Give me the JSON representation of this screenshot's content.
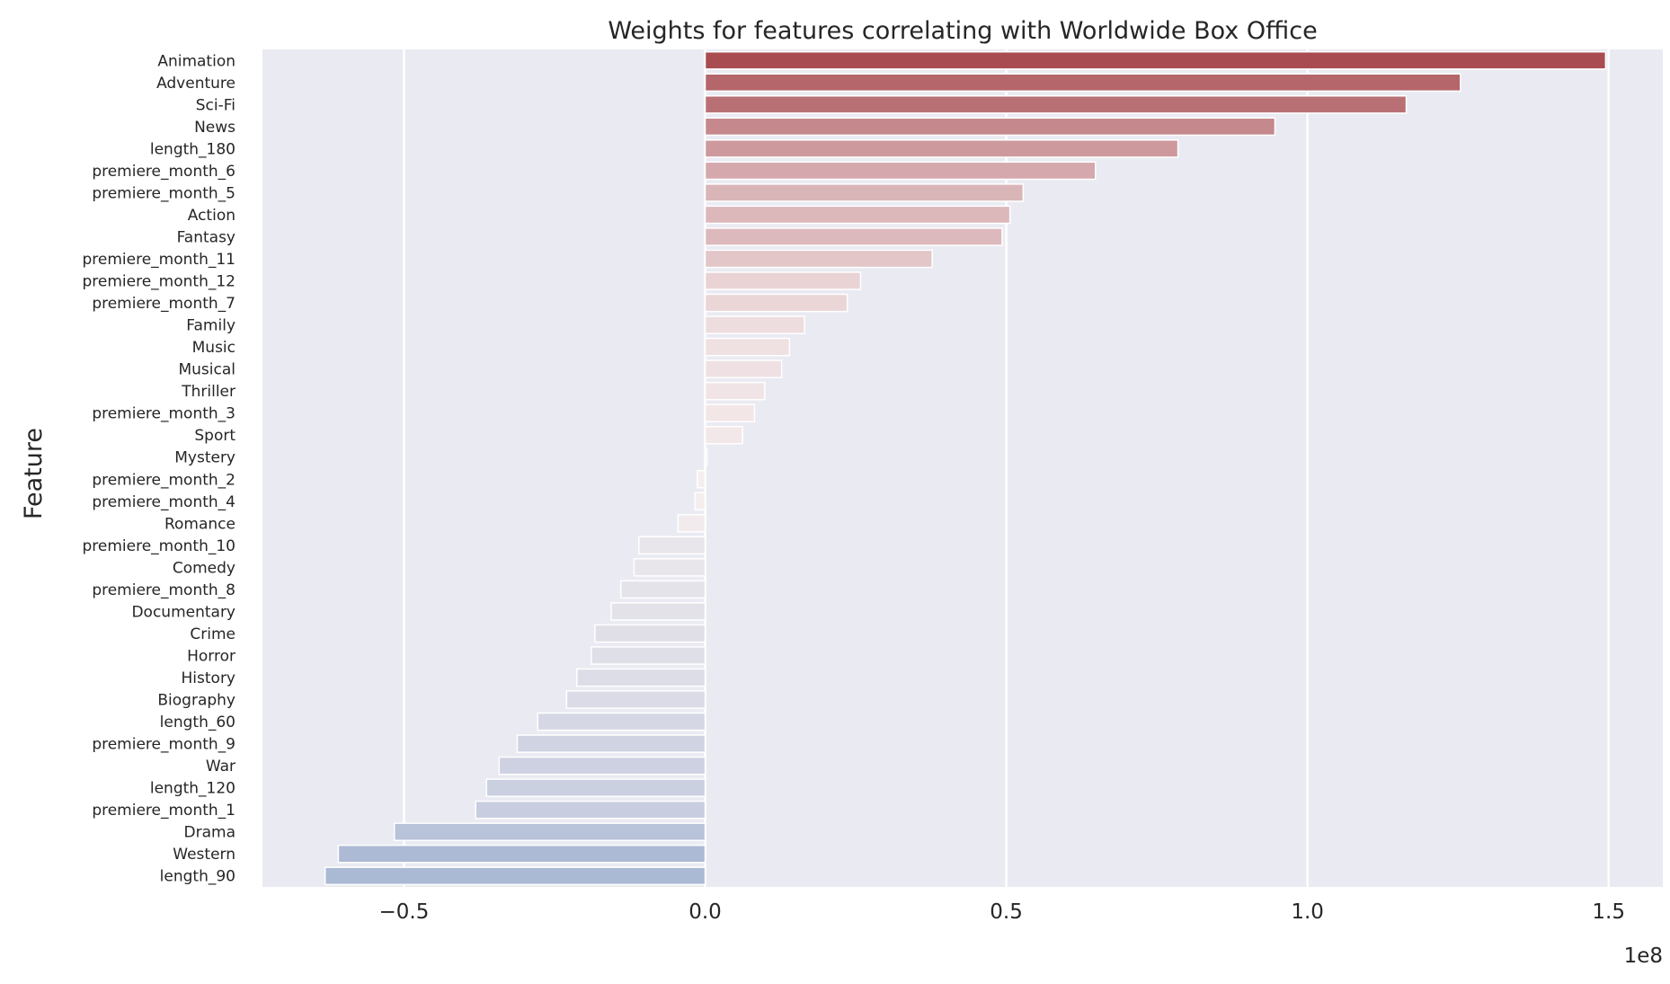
{
  "chart_data": {
    "type": "bar",
    "orientation": "horizontal",
    "title": "Weights for features correlating with Worldwide Box Office",
    "xlabel": "",
    "ylabel": "Feature",
    "axis_offset_label": "1e8",
    "xlim": [
      -0.735,
      1.59
    ],
    "xticks": [
      -0.5,
      0.0,
      0.5,
      1.0,
      1.5
    ],
    "xtick_labels": [
      "−0.5",
      "0.0",
      "0.5",
      "1.0",
      "1.5"
    ],
    "grid": true,
    "colormap": "diverging red (positive) to blue (negative)",
    "categories": [
      "Animation",
      "Adventure",
      "Sci-Fi",
      "News",
      "length_180",
      "premiere_month_6",
      "premiere_month_5",
      "Action",
      "Fantasy",
      "premiere_month_11",
      "premiere_month_12",
      "premiere_month_7",
      "Family",
      "Music",
      "Musical",
      "Thriller",
      "premiere_month_3",
      "Sport",
      "Mystery",
      "premiere_month_2",
      "premiere_month_4",
      "Romance",
      "premiere_month_10",
      "Comedy",
      "premiere_month_8",
      "Documentary",
      "Crime",
      "Horror",
      "History",
      "Biography",
      "length_60",
      "premiere_month_9",
      "War",
      "length_120",
      "premiere_month_1",
      "Drama",
      "Western",
      "length_90"
    ],
    "values": [
      1.495,
      1.254,
      1.164,
      0.946,
      0.785,
      0.648,
      0.528,
      0.506,
      0.493,
      0.377,
      0.258,
      0.236,
      0.165,
      0.14,
      0.127,
      0.099,
      0.082,
      0.062,
      0.003,
      -0.013,
      -0.017,
      -0.045,
      -0.11,
      -0.118,
      -0.14,
      -0.156,
      -0.183,
      -0.189,
      -0.213,
      -0.23,
      -0.278,
      -0.312,
      -0.342,
      -0.363,
      -0.381,
      -0.516,
      -0.609,
      -0.631
    ]
  }
}
